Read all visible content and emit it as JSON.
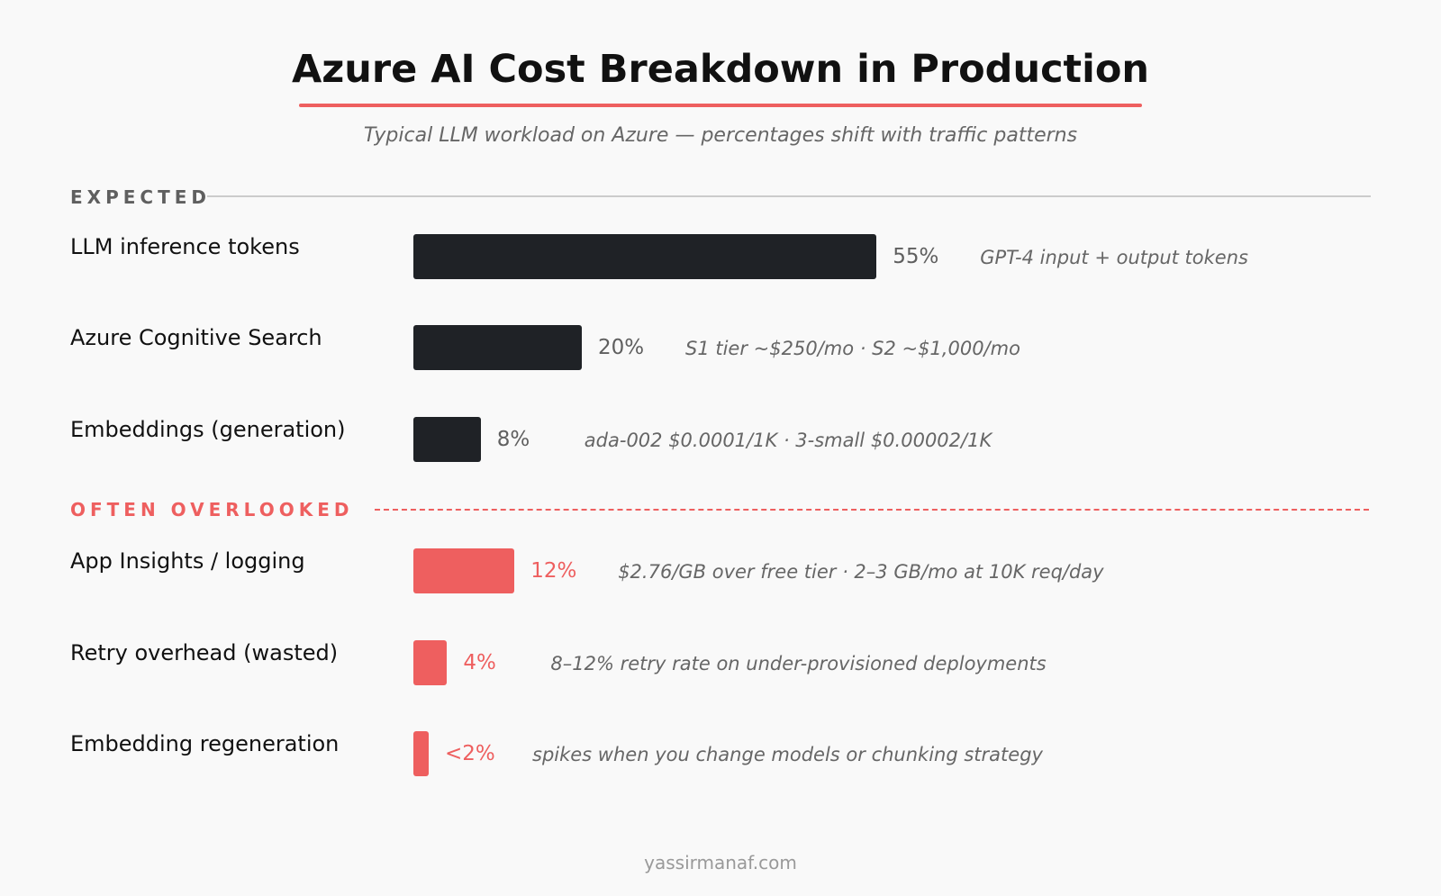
{
  "chart_data": {
    "type": "bar",
    "orientation": "horizontal",
    "title": "Azure AI Cost Breakdown in Production",
    "subtitle": "Typical LLM workload on Azure — percentages shift with traffic patterns",
    "unit": "%",
    "colors": {
      "expected": "#1f2226",
      "overlooked": "#ee5f5f"
    },
    "groups": [
      {
        "label": "EXPECTED",
        "color": "#1f2226",
        "items": [
          {
            "label": "LLM inference tokens",
            "value": 55,
            "value_label": "55%",
            "note": "GPT-4 input + output tokens"
          },
          {
            "label": "Azure Cognitive Search",
            "value": 20,
            "value_label": "20%",
            "note": "S1 tier ~$250/mo · S2 ~$1,000/mo"
          },
          {
            "label": "Embeddings (generation)",
            "value": 8,
            "value_label": "8%",
            "note": "ada-002 $0.0001/1K · 3-small $0.00002/1K"
          }
        ]
      },
      {
        "label": "OFTEN OVERLOOKED",
        "color": "#ee5f5f",
        "items": [
          {
            "label": "App Insights / logging",
            "value": 12,
            "value_label": "12%",
            "note": "$2.76/GB over free tier · 2–3 GB/mo at 10K req/day"
          },
          {
            "label": "Retry overhead (wasted)",
            "value": 4,
            "value_label": "4%",
            "note": "8–12% retry rate on under-provisioned deployments"
          },
          {
            "label": "Embedding regeneration",
            "value": 2,
            "value_label": "<2%",
            "note": "spikes when you change models or chunking strategy"
          }
        ]
      }
    ]
  },
  "footer": "yassirmanaf.com"
}
